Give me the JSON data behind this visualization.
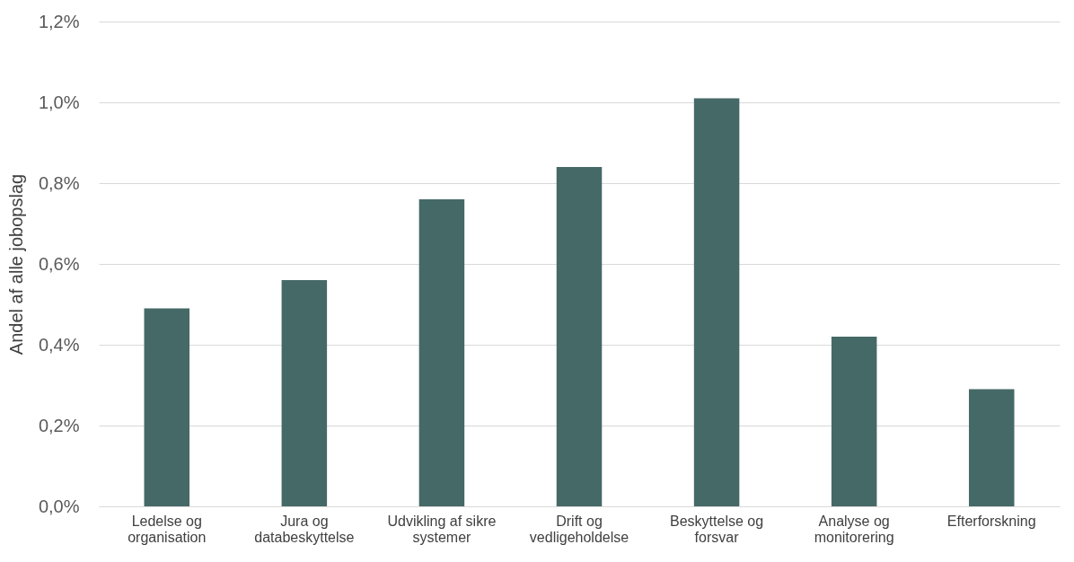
{
  "chart_data": {
    "type": "bar",
    "ylabel": "Andel af alle jobopslag",
    "categories": [
      "Ledelse og organisation",
      "Jura og databeskyttelse",
      "Udvikling af sikre systemer",
      "Drift og vedligeholdelse",
      "Beskyttelse og forsvar",
      "Analyse og monitorering",
      "Efterforskning"
    ],
    "values": [
      0.49,
      0.56,
      0.76,
      0.84,
      1.01,
      0.42,
      0.29
    ],
    "color": "#456967",
    "ylim": [
      0,
      1.2
    ],
    "yticks": [
      {
        "value": 0,
        "label": "0,0%"
      },
      {
        "value": 0.2,
        "label": "0,2%"
      },
      {
        "value": 0.4,
        "label": "0,4%"
      },
      {
        "value": 0.6,
        "label": "0,6%"
      },
      {
        "value": 0.8,
        "label": "0,8%"
      },
      {
        "value": 1.0,
        "label": "1,0%"
      },
      {
        "value": 1.2,
        "label": "1,2%"
      }
    ],
    "grid": "y"
  }
}
